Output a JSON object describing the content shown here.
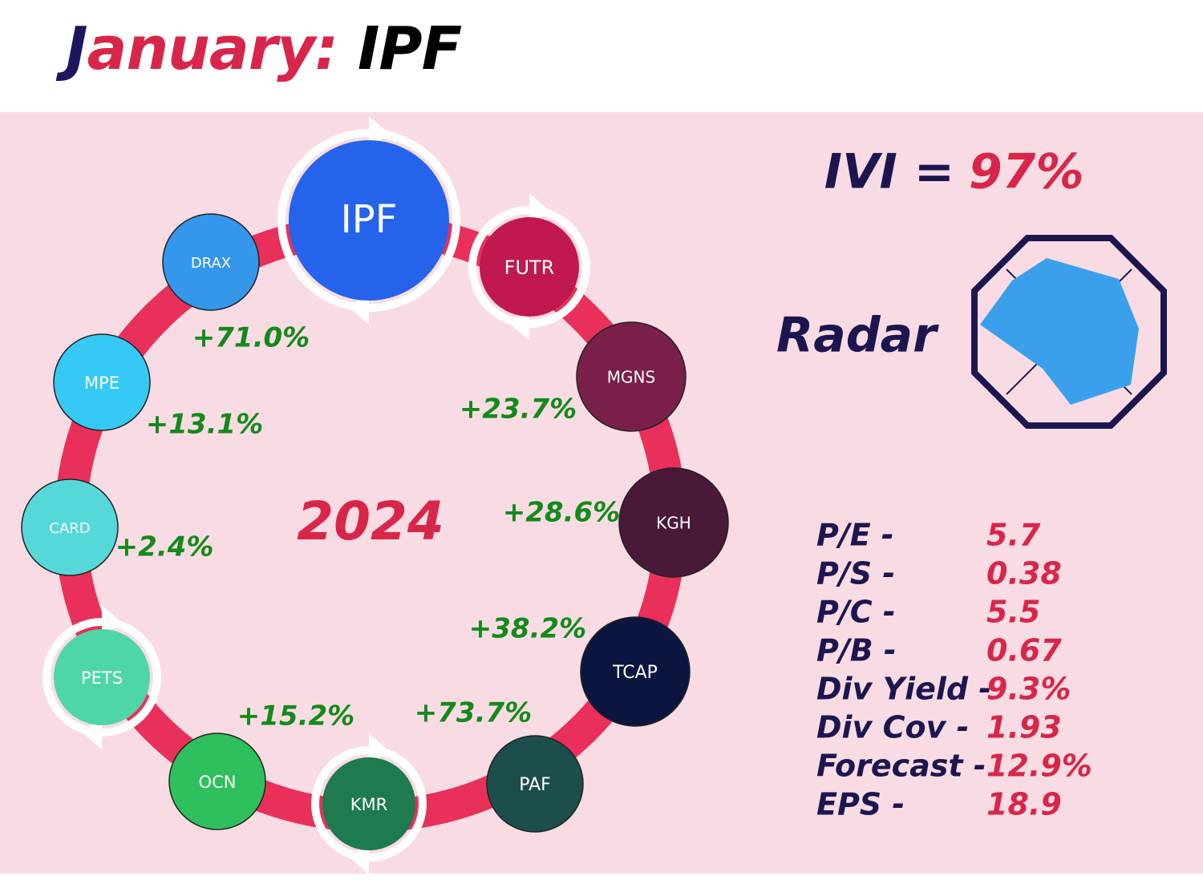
{
  "header": {
    "month": "January:",
    "ticker": "IPF"
  },
  "ring": {
    "year": "2024",
    "nodes": [
      {
        "label": "IPF",
        "color": "#2563eb"
      },
      {
        "label": "FUTR",
        "color": "#c0184f"
      },
      {
        "label": "MGNS",
        "color": "#7a1f4a"
      },
      {
        "label": "KGH",
        "color": "#4a1838"
      },
      {
        "label": "TCAP",
        "color": "#0b1640"
      },
      {
        "label": "PAF",
        "color": "#1b4e4c"
      },
      {
        "label": "KMR",
        "color": "#1e7a4f"
      },
      {
        "label": "OCN",
        "color": "#2ec05c"
      },
      {
        "label": "PETS",
        "color": "#4fd6a8"
      },
      {
        "label": "CARD",
        "color": "#55d8da"
      },
      {
        "label": "MPE",
        "color": "#36c9f5"
      },
      {
        "label": "DRAX",
        "color": "#3497ec"
      }
    ],
    "changes": [
      "+71.0%",
      "+13.1%",
      "+2.4%",
      "+15.2%",
      "+73.7%",
      "+38.2%",
      "+28.6%",
      "+23.7%"
    ]
  },
  "ivi": {
    "label": "IVI =",
    "value": "97%"
  },
  "radar": {
    "label": "Radar"
  },
  "metrics": [
    {
      "label": "P/E -",
      "value": "5.7"
    },
    {
      "label": "P/S -",
      "value": "0.38"
    },
    {
      "label": "P/C -",
      "value": "5.5"
    },
    {
      "label": "P/B -",
      "value": "0.67"
    },
    {
      "label": "Div Yield -",
      "value": "9.3%"
    },
    {
      "label": "Div Cov -",
      "value": "1.93"
    },
    {
      "label": "Forecast -",
      "value": "12.9%"
    },
    {
      "label": "EPS -",
      "value": "18.9"
    }
  ]
}
